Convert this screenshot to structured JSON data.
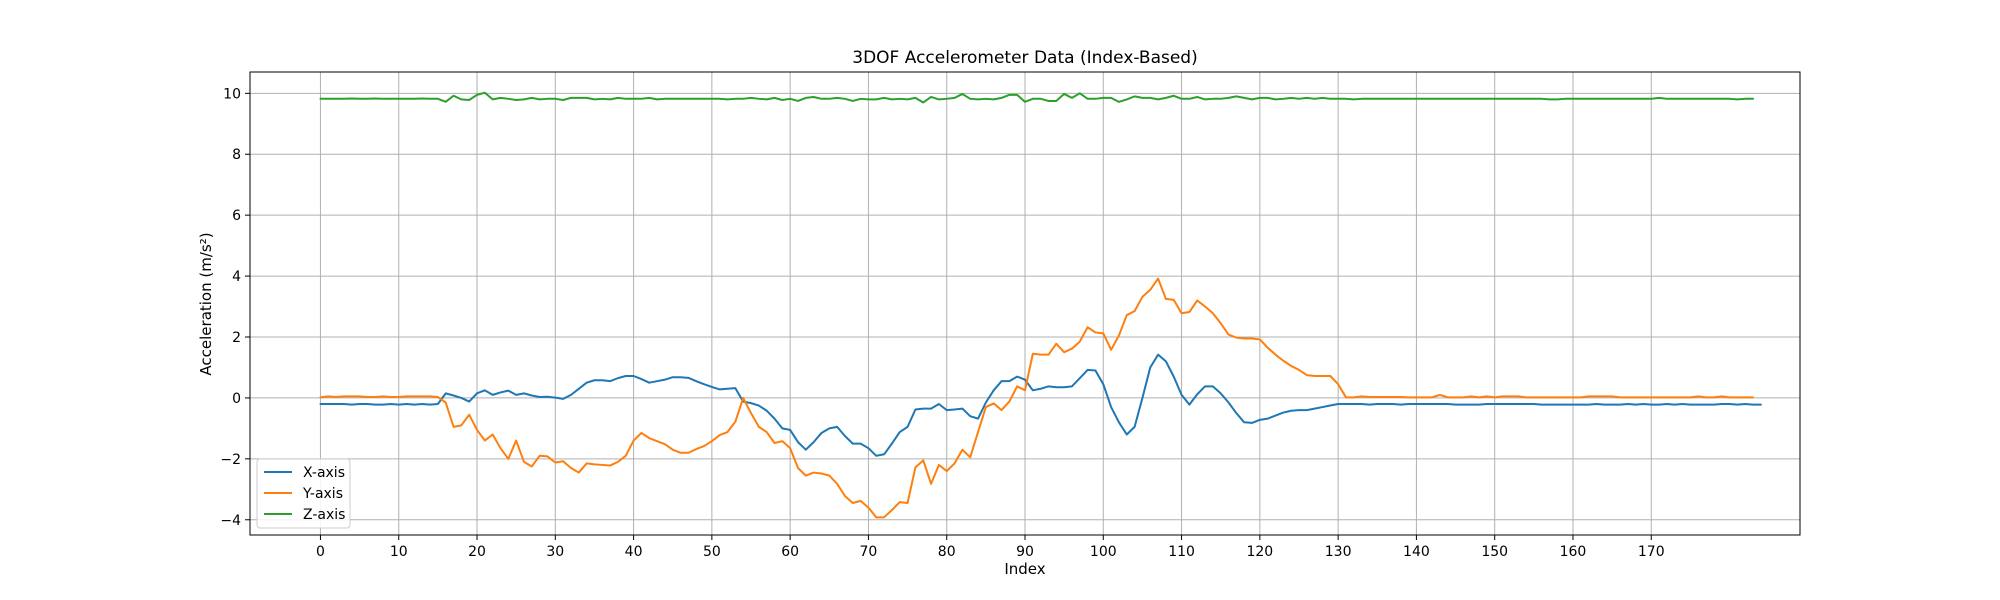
{
  "chart_data": {
    "type": "line",
    "title": "3DOF Accelerometer Data (Index-Based)",
    "xlabel": "Index",
    "ylabel": "Acceleration (m/s²)",
    "xlim": [
      -9,
      189
    ],
    "ylim": [
      -4.5,
      10.7
    ],
    "xticks": [
      0,
      10,
      20,
      30,
      40,
      50,
      60,
      70,
      80,
      90,
      100,
      110,
      120,
      130,
      140,
      150,
      160,
      170
    ],
    "yticks": [
      -4,
      -2,
      0,
      2,
      4,
      6,
      8,
      10
    ],
    "grid": true,
    "legend_position": "lower-left",
    "series": [
      {
        "name": "X-axis",
        "color": "#1f77b4",
        "values": [
          -0.2,
          -0.2,
          -0.2,
          -0.2,
          -0.22,
          -0.2,
          -0.2,
          -0.22,
          -0.22,
          -0.2,
          -0.22,
          -0.2,
          -0.22,
          -0.2,
          -0.22,
          -0.2,
          0.15,
          0.08,
          0.0,
          -0.12,
          0.15,
          0.25,
          0.1,
          0.18,
          0.24,
          0.1,
          0.15,
          0.08,
          0.03,
          0.04,
          0.01,
          -0.03,
          0.1,
          0.3,
          0.5,
          0.58,
          0.58,
          0.55,
          0.65,
          0.72,
          0.72,
          0.62,
          0.5,
          0.55,
          0.6,
          0.68,
          0.68,
          0.66,
          0.55,
          0.45,
          0.36,
          0.28,
          0.3,
          0.32,
          -0.12,
          -0.17,
          -0.25,
          -0.42,
          -0.68,
          -1.0,
          -1.05,
          -1.45,
          -1.7,
          -1.45,
          -1.15,
          -1.0,
          -0.95,
          -1.25,
          -1.5,
          -1.5,
          -1.65,
          -1.9,
          -1.85,
          -1.5,
          -1.12,
          -0.95,
          -0.38,
          -0.35,
          -0.35,
          -0.2,
          -0.4,
          -0.38,
          -0.35,
          -0.6,
          -0.68,
          -0.15,
          0.25,
          0.55,
          0.55,
          0.7,
          0.6,
          0.25,
          0.3,
          0.38,
          0.35,
          0.35,
          0.38,
          0.65,
          0.92,
          0.9,
          0.45,
          -0.3,
          -0.8,
          -1.2,
          -0.95,
          0.0,
          1.0,
          1.42,
          1.2,
          0.7,
          0.1,
          -0.22,
          0.12,
          0.38,
          0.38,
          0.15,
          -0.15,
          -0.5,
          -0.8,
          -0.82,
          -0.72,
          -0.68,
          -0.58,
          -0.48,
          -0.42,
          -0.4,
          -0.4,
          -0.35,
          -0.3,
          -0.25,
          -0.2,
          -0.2,
          -0.2,
          -0.2,
          -0.22,
          -0.2,
          -0.2,
          -0.2,
          -0.22,
          -0.2,
          -0.2,
          -0.2,
          -0.2,
          -0.2,
          -0.2,
          -0.22,
          -0.22,
          -0.22,
          -0.22,
          -0.2,
          -0.2,
          -0.2,
          -0.2,
          -0.2,
          -0.2,
          -0.2,
          -0.22,
          -0.22,
          -0.22,
          -0.22,
          -0.22,
          -0.22,
          -0.22,
          -0.2,
          -0.22,
          -0.22,
          -0.22,
          -0.2,
          -0.22,
          -0.2,
          -0.22,
          -0.22,
          -0.2,
          -0.22,
          -0.2,
          -0.22,
          -0.22,
          -0.22,
          -0.22,
          -0.2,
          -0.2,
          -0.22,
          -0.2,
          -0.22,
          -0.22
        ]
      },
      {
        "name": "Y-axis",
        "color": "#ff7f0e",
        "values": [
          0.02,
          0.05,
          0.03,
          0.05,
          0.05,
          0.05,
          0.03,
          0.03,
          0.05,
          0.03,
          0.03,
          0.05,
          0.05,
          0.05,
          0.05,
          0.03,
          -0.15,
          -0.95,
          -0.9,
          -0.55,
          -1.05,
          -1.4,
          -1.2,
          -1.65,
          -2.0,
          -1.4,
          -2.1,
          -2.25,
          -1.9,
          -1.92,
          -2.12,
          -2.08,
          -2.3,
          -2.45,
          -2.15,
          -2.18,
          -2.2,
          -2.22,
          -2.1,
          -1.9,
          -1.4,
          -1.15,
          -1.32,
          -1.42,
          -1.52,
          -1.7,
          -1.8,
          -1.8,
          -1.68,
          -1.58,
          -1.42,
          -1.22,
          -1.12,
          -0.78,
          0.0,
          -0.5,
          -0.95,
          -1.12,
          -1.48,
          -1.42,
          -1.65,
          -2.3,
          -2.55,
          -2.45,
          -2.48,
          -2.55,
          -2.82,
          -3.22,
          -3.45,
          -3.38,
          -3.6,
          -3.92,
          -3.92,
          -3.68,
          -3.42,
          -3.45,
          -2.28,
          -2.05,
          -2.82,
          -2.2,
          -2.4,
          -2.15,
          -1.7,
          -1.95,
          -1.12,
          -0.3,
          -0.18,
          -0.4,
          -0.12,
          0.38,
          0.25,
          1.45,
          1.42,
          1.42,
          1.78,
          1.5,
          1.62,
          1.85,
          2.32,
          2.15,
          2.12,
          1.58,
          2.05,
          2.72,
          2.85,
          3.32,
          3.55,
          3.92,
          3.25,
          3.22,
          2.78,
          2.82,
          3.2,
          3.0,
          2.78,
          2.45,
          2.08,
          1.98,
          1.95,
          1.95,
          1.92,
          1.65,
          1.42,
          1.22,
          1.05,
          0.92,
          0.75,
          0.72,
          0.72,
          0.72,
          0.45,
          0.02,
          0.02,
          0.05,
          0.03,
          0.03,
          0.03,
          0.03,
          0.03,
          0.02,
          0.02,
          0.02,
          0.02,
          0.1,
          0.02,
          0.02,
          0.02,
          0.05,
          0.02,
          0.05,
          0.02,
          0.05,
          0.05,
          0.05,
          0.02,
          0.02,
          0.02,
          0.02,
          0.02,
          0.02,
          0.02,
          0.02,
          0.05,
          0.05,
          0.05,
          0.05,
          0.02,
          0.02,
          0.02,
          0.02,
          0.02,
          0.02,
          0.02,
          0.02,
          0.02,
          0.02,
          0.05,
          0.02,
          0.02,
          0.05,
          0.02,
          0.02,
          0.02,
          0.02
        ]
      },
      {
        "name": "Z-axis",
        "color": "#2ca02c",
        "values": [
          9.82,
          9.82,
          9.82,
          9.82,
          9.83,
          9.82,
          9.82,
          9.83,
          9.82,
          9.82,
          9.82,
          9.82,
          9.82,
          9.83,
          9.82,
          9.82,
          9.72,
          9.92,
          9.8,
          9.78,
          9.95,
          10.02,
          9.8,
          9.85,
          9.82,
          9.78,
          9.8,
          9.85,
          9.8,
          9.82,
          9.82,
          9.78,
          9.85,
          9.85,
          9.85,
          9.8,
          9.82,
          9.8,
          9.85,
          9.82,
          9.82,
          9.82,
          9.85,
          9.8,
          9.82,
          9.82,
          9.82,
          9.82,
          9.82,
          9.82,
          9.82,
          9.82,
          9.8,
          9.82,
          9.82,
          9.85,
          9.82,
          9.8,
          9.85,
          9.78,
          9.82,
          9.75,
          9.85,
          9.88,
          9.82,
          9.82,
          9.85,
          9.82,
          9.75,
          9.82,
          9.8,
          9.8,
          9.85,
          9.8,
          9.82,
          9.8,
          9.85,
          9.7,
          9.88,
          9.8,
          9.82,
          9.85,
          9.98,
          9.82,
          9.8,
          9.82,
          9.8,
          9.85,
          9.95,
          9.95,
          9.72,
          9.82,
          9.82,
          9.75,
          9.75,
          9.98,
          9.85,
          10.0,
          9.82,
          9.82,
          9.85,
          9.85,
          9.72,
          9.8,
          9.9,
          9.85,
          9.85,
          9.8,
          9.85,
          9.92,
          9.82,
          9.82,
          9.88,
          9.8,
          9.82,
          9.82,
          9.85,
          9.9,
          9.85,
          9.8,
          9.85,
          9.85,
          9.8,
          9.82,
          9.85,
          9.82,
          9.85,
          9.82,
          9.85,
          9.82,
          9.82,
          9.82,
          9.8,
          9.82,
          9.82,
          9.82,
          9.82,
          9.82,
          9.82,
          9.82,
          9.82,
          9.82,
          9.82,
          9.82,
          9.82,
          9.82,
          9.82,
          9.82,
          9.82,
          9.82,
          9.82,
          9.82,
          9.82,
          9.82,
          9.82,
          9.82,
          9.82,
          9.8,
          9.8,
          9.82,
          9.82,
          9.82,
          9.82,
          9.82,
          9.82,
          9.82,
          9.82,
          9.82,
          9.82,
          9.82,
          9.82,
          9.85,
          9.82,
          9.82,
          9.82,
          9.82,
          9.82,
          9.82,
          9.82,
          9.82,
          9.82,
          9.8,
          9.82,
          9.82
        ]
      }
    ]
  }
}
